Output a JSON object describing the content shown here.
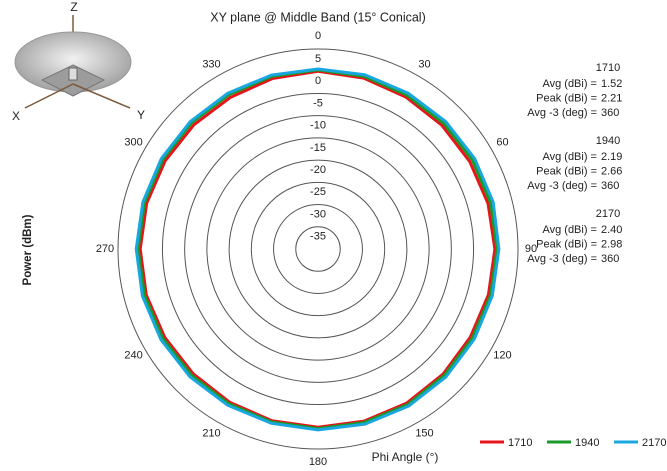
{
  "chart_data": {
    "type": "polar",
    "title": "XY plane @ Middle Band (15° Conical)",
    "r_label": "Power (dBm)",
    "theta_label": "Phi  Angle (°)",
    "rlim": [
      -40,
      5
    ],
    "rticks": [
      5,
      0,
      -5,
      -10,
      -15,
      -20,
      -25,
      -30,
      -35
    ],
    "thetaticks": [
      0,
      30,
      60,
      90,
      120,
      150,
      180,
      210,
      240,
      270,
      300,
      330
    ],
    "theta": [
      0,
      15,
      30,
      45,
      60,
      75,
      90,
      105,
      120,
      135,
      150,
      165,
      180,
      195,
      210,
      225,
      240,
      255,
      270,
      285,
      300,
      315,
      330,
      345
    ],
    "series": [
      {
        "name": "1710",
        "color": "#e8141c",
        "values": [
          0,
          -0.2,
          -0.5,
          -0.6,
          -0.6,
          -0.4,
          -0.2,
          -0.3,
          -0.4,
          -0.2,
          0,
          0.1,
          0.1,
          0,
          -0.2,
          -0.3,
          -0.2,
          0,
          0,
          -0.1,
          -0.3,
          -0.5,
          -0.6,
          -0.3
        ]
      },
      {
        "name": "1940",
        "color": "#1a9a2a",
        "values": [
          0.3,
          0.2,
          0,
          0,
          0.1,
          0.2,
          0.3,
          0.2,
          0.1,
          0.2,
          0.4,
          0.4,
          0.4,
          0.3,
          0.2,
          0.2,
          0.3,
          0.4,
          0.5,
          0.4,
          0.3,
          0.2,
          0.1,
          0.2
        ]
      },
      {
        "name": "2170",
        "color": "#1aa7e0",
        "values": [
          0.5,
          0.6,
          0.5,
          0.6,
          0.7,
          0.8,
          0.7,
          0.6,
          0.6,
          0.7,
          0.8,
          0.8,
          0.7,
          0.6,
          0.6,
          0.7,
          0.8,
          0.9,
          0.9,
          0.8,
          0.7,
          0.6,
          0.5,
          0.5
        ]
      }
    ]
  },
  "stats": [
    {
      "band": "1710",
      "rows": [
        {
          "label": "Avg (dBi) =",
          "value": "1.52"
        },
        {
          "label": "Peak (dBi) =",
          "value": "2.21"
        },
        {
          "label": "Avg -3 (deg) =",
          "value": "360"
        }
      ]
    },
    {
      "band": "1940",
      "rows": [
        {
          "label": "Avg (dBi) =",
          "value": "2.19"
        },
        {
          "label": "Peak (dBi) =",
          "value": "2.66"
        },
        {
          "label": "Avg -3 (deg) =",
          "value": "360"
        }
      ]
    },
    {
      "band": "2170",
      "rows": [
        {
          "label": "Avg (dBi) =",
          "value": "2.40"
        },
        {
          "label": "Peak (dBi) =",
          "value": "2.98"
        },
        {
          "label": "Avg -3 (deg) =",
          "value": "360"
        }
      ]
    }
  ],
  "icon_labels": [
    "Z",
    "X",
    "Y"
  ]
}
